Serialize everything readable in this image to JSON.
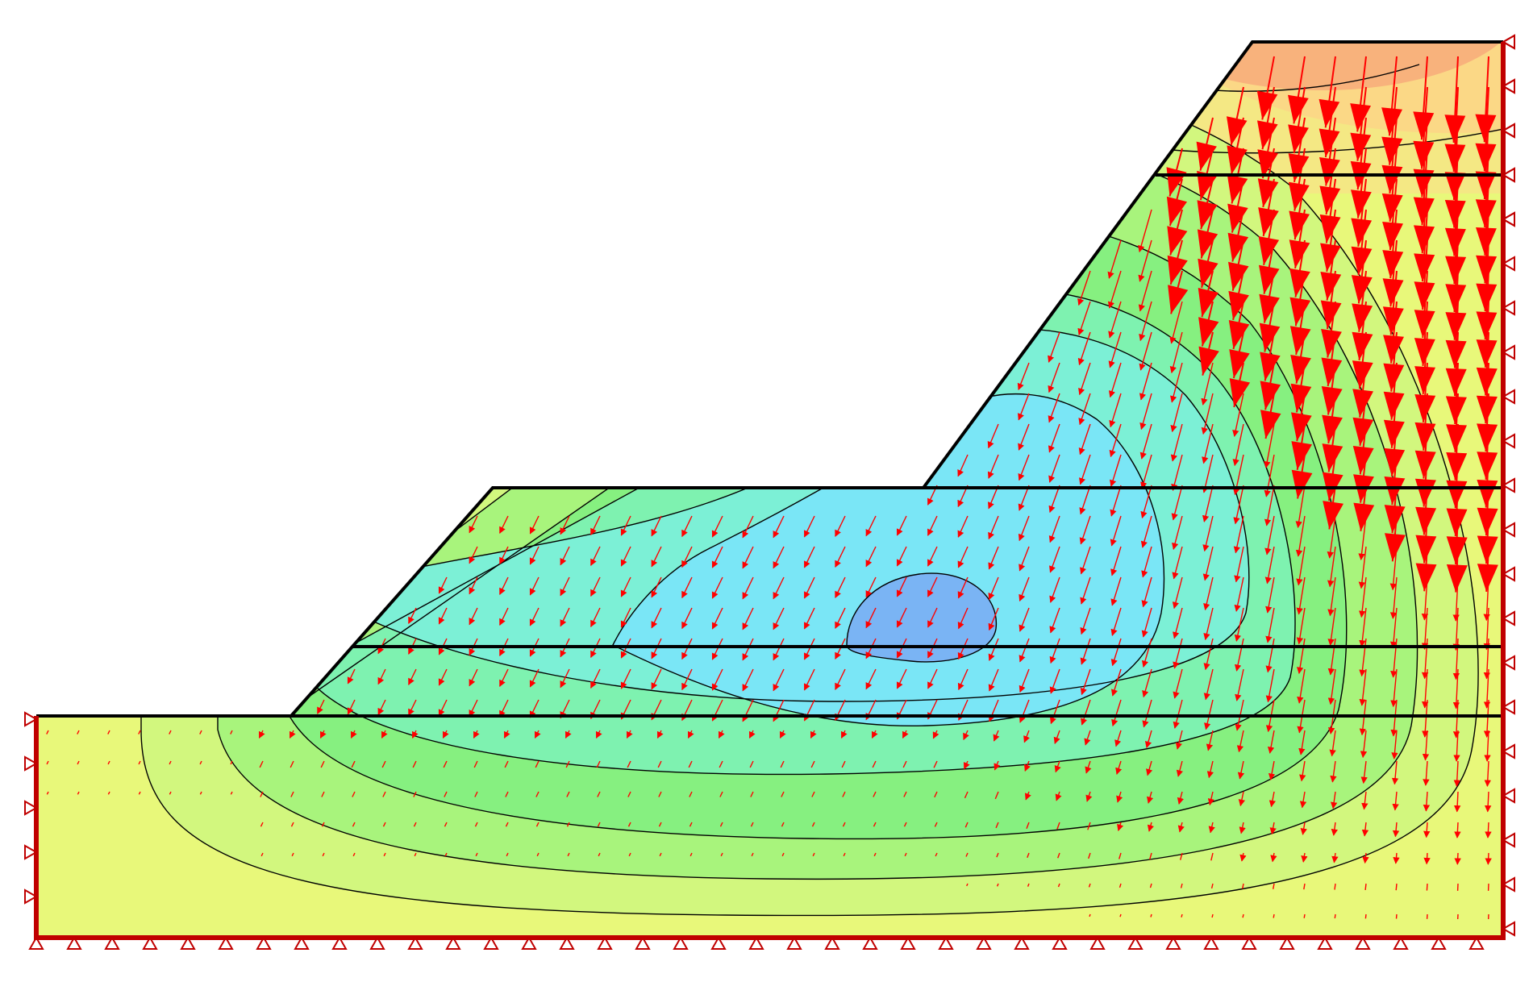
{
  "view": {
    "type": "finite-element-slope-model",
    "result": "displacement-vectors-over-contours"
  },
  "colors": {
    "background": "#ffffff",
    "outline": "#000000",
    "boundary": "#c00000",
    "arrow": "#ff0000",
    "contour_line": "#000000",
    "bands": [
      "#e8f87a",
      "#d2f77e",
      "#a8f47c",
      "#86f080",
      "#7ef2b0",
      "#7cf0d6",
      "#7ae6f6",
      "#7ab4f4"
    ],
    "top_warm": [
      "#f4e884",
      "#fbd886",
      "#f8b27c"
    ]
  },
  "model": {
    "layers": 5,
    "supports": [
      "left-edge-rollers",
      "bottom-edge-pins",
      "right-edge-rollers"
    ]
  },
  "icons": {
    "support": "support-triangle-icon",
    "arrow": "displacement-arrow-icon"
  }
}
